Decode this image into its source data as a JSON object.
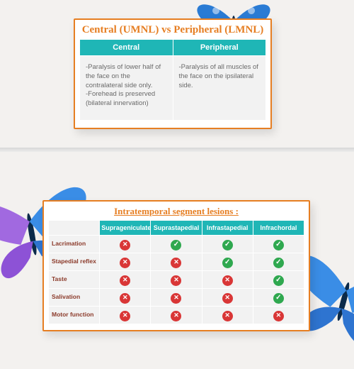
{
  "card1": {
    "title": "Central (UMNL) vs Peripheral (LMNL)",
    "columns": [
      "Central",
      "Peripheral"
    ],
    "cells": [
      "-Paralysis of lower half of the face on the contralateral side only.\n-Forehead is preserved (bilateral innervation)",
      "-Paralysis of all muscles of the face on the ipsilateral side."
    ]
  },
  "card2": {
    "title": "Intratemporal segment lesions :",
    "columns": [
      "Suprageniculate",
      "Suprastapedial",
      "Infrastapedial",
      "Infrachordal"
    ],
    "rows": [
      {
        "label": "Lacrimation",
        "marks": [
          "x",
          "v",
          "v",
          "v"
        ]
      },
      {
        "label": "Stapedial reflex",
        "marks": [
          "x",
          "x",
          "v",
          "v"
        ]
      },
      {
        "label": "Taste",
        "marks": [
          "x",
          "x",
          "x",
          "v"
        ]
      },
      {
        "label": "Salivation",
        "marks": [
          "x",
          "x",
          "x",
          "v"
        ]
      },
      {
        "label": "Motor function",
        "marks": [
          "x",
          "x",
          "x",
          "x"
        ]
      }
    ]
  },
  "colors": {
    "accent": "#e67e22",
    "teal": "#1fb6b6",
    "ok": "#2fa84f",
    "no": "#d93636"
  }
}
